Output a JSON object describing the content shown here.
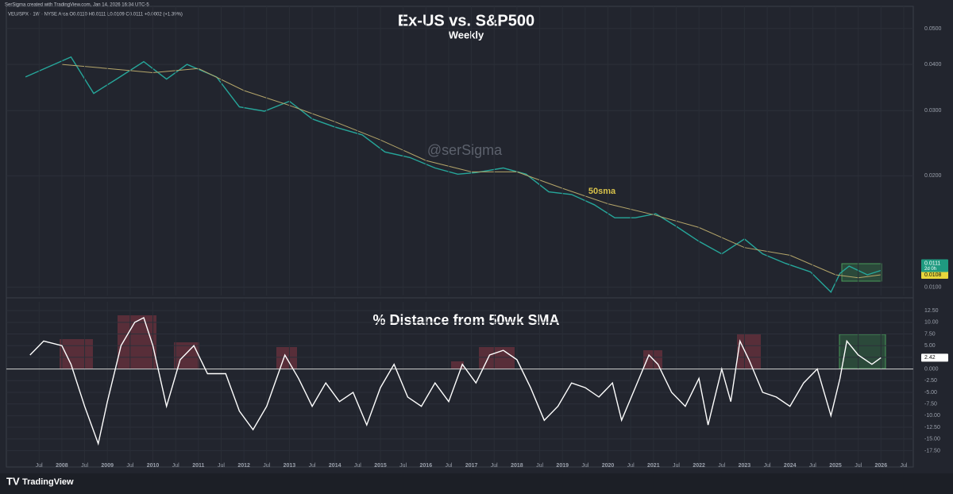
{
  "header": "SerSigma created with TradingView.com, Jan 14, 2026 16:34 UTC-5",
  "legend": "VEU/SPX · 1W · NYSE Arca  O0.0110 H0.0111 L0.0109 C0.0111 +0.0002 (+1.39%)",
  "watermark": "@serSigma",
  "brand": "TradingView",
  "chart_data": [
    {
      "type": "line",
      "title": "Ex-US vs. S&P500",
      "subtitle": "Weekly",
      "log_scale": true,
      "grid": true,
      "xlim": [
        2006.78,
        2026.71
      ],
      "ylim": [
        0.0095,
        0.0574
      ],
      "yticks": [
        {
          "value": 0.05,
          "label": "0.0500"
        },
        {
          "value": 0.04,
          "label": "0.0400"
        },
        {
          "value": 0.03,
          "label": "0.0300"
        },
        {
          "value": 0.02,
          "label": "0.0200"
        },
        {
          "value": 0.01,
          "label": "0.0100"
        }
      ],
      "annotation": "50sma",
      "last_price": {
        "value": 0.0111,
        "label": "0.0111",
        "countdown": "2d 0h"
      },
      "sma_last": {
        "value": 0.0108,
        "label": "0.0108"
      },
      "series": [
        {
          "name": "VEU/SPX",
          "color": "#26a69a",
          "x": [
            2007.2,
            2008.2,
            2008.7,
            2009.2,
            2009.8,
            2010.3,
            2010.75,
            2011.4,
            2011.9,
            2012.45,
            2013.0,
            2013.5,
            2014.0,
            2014.6,
            2015.1,
            2015.65,
            2016.2,
            2016.7,
            2017.1,
            2017.7,
            2018.2,
            2018.7,
            2019.2,
            2019.7,
            2020.15,
            2020.6,
            2021.05,
            2021.5,
            2022.0,
            2022.5,
            2023.0,
            2023.4,
            2023.9,
            2024.45,
            2024.9,
            2025.1,
            2025.3,
            2025.7,
            2026.0
          ],
          "values": [
            0.037,
            0.0419,
            0.0334,
            0.0365,
            0.0407,
            0.0365,
            0.04,
            0.037,
            0.0307,
            0.0299,
            0.0318,
            0.0285,
            0.0271,
            0.0258,
            0.0232,
            0.0224,
            0.021,
            0.0202,
            0.0204,
            0.021,
            0.0202,
            0.0181,
            0.0178,
            0.0167,
            0.0154,
            0.0154,
            0.0158,
            0.0146,
            0.0133,
            0.0123,
            0.0135,
            0.0123,
            0.0116,
            0.011,
            0.0097,
            0.0109,
            0.0114,
            0.0108,
            0.0111
          ]
        },
        {
          "name": "50sma",
          "color": "#b5a66a",
          "x": [
            2008.0,
            2009.0,
            2010.0,
            2011.0,
            2012.0,
            2013.0,
            2014.0,
            2015.0,
            2016.0,
            2017.0,
            2018.0,
            2019.0,
            2020.0,
            2021.0,
            2022.0,
            2023.0,
            2024.0,
            2025.0,
            2025.5,
            2026.0
          ],
          "values": [
            0.04,
            0.039,
            0.038,
            0.039,
            0.034,
            0.031,
            0.028,
            0.025,
            0.022,
            0.0205,
            0.0205,
            0.0185,
            0.0168,
            0.0157,
            0.0145,
            0.0128,
            0.0122,
            0.0108,
            0.0106,
            0.0108
          ]
        }
      ]
    },
    {
      "type": "line",
      "title": "% Distance from 50wk SMA",
      "grid": true,
      "reference_line": 0,
      "xlim": [
        2006.78,
        2026.71
      ],
      "ylim": [
        -21,
        14.4
      ],
      "xticks": [
        {
          "value": 2007.5,
          "label": "Jul"
        },
        2008,
        {
          "value": 2008.5,
          "label": "Jul"
        },
        2009,
        {
          "value": 2009.5,
          "label": "Jul"
        },
        2010,
        {
          "value": 2010.5,
          "label": "Jul"
        },
        2011,
        {
          "value": 2011.5,
          "label": "Jul"
        },
        2012,
        {
          "value": 2012.5,
          "label": "Jul"
        },
        2013,
        {
          "value": 2013.5,
          "label": "Jul"
        },
        2014,
        {
          "value": 2014.5,
          "label": "Jul"
        },
        2015,
        {
          "value": 2015.5,
          "label": "Jul"
        },
        2016,
        {
          "value": 2016.5,
          "label": "Jul"
        },
        2017,
        {
          "value": 2017.5,
          "label": "Jul"
        },
        2018,
        {
          "value": 2018.5,
          "label": "Jul"
        },
        2019,
        {
          "value": 2019.5,
          "label": "Jul"
        },
        2020,
        {
          "value": 2020.5,
          "label": "Jul"
        },
        2021,
        {
          "value": 2021.5,
          "label": "Jul"
        },
        2022,
        {
          "value": 2022.5,
          "label": "Jul"
        },
        2023,
        {
          "value": 2023.5,
          "label": "Jul"
        },
        2024,
        {
          "value": 2024.5,
          "label": "Jul"
        },
        2025,
        {
          "value": 2025.5,
          "label": "Jul"
        },
        2026,
        {
          "value": 2026.5,
          "label": "Jul"
        }
      ],
      "yticks": [
        {
          "value": 12.5,
          "label": "12.50"
        },
        {
          "value": 10,
          "label": "10.00"
        },
        {
          "value": 7.5,
          "label": "7.50"
        },
        {
          "value": 5,
          "label": "5.00"
        },
        {
          "value": 2.5,
          "label": "2.50"
        },
        {
          "value": 0,
          "label": "0.000"
        },
        {
          "value": -2.5,
          "label": "-2.50"
        },
        {
          "value": -5,
          "label": "-5.00"
        },
        {
          "value": -7.5,
          "label": "-7.50"
        },
        {
          "value": -10,
          "label": "-10.00"
        },
        {
          "value": -12.5,
          "label": "-12.50"
        },
        {
          "value": -15,
          "label": "-15.00"
        },
        {
          "value": -17.5,
          "label": "-17.50"
        }
      ],
      "last_value": {
        "value": 2.42,
        "label": "2.42"
      },
      "series": [
        {
          "name": "% Distance from 50wk SMA",
          "color": "#ffffff",
          "x": [
            2007.3,
            2007.6,
            2008.0,
            2008.2,
            2008.5,
            2008.8,
            2009.0,
            2009.3,
            2009.6,
            2009.8,
            2010.0,
            2010.3,
            2010.6,
            2010.9,
            2011.2,
            2011.6,
            2011.9,
            2012.2,
            2012.5,
            2012.9,
            2013.2,
            2013.5,
            2013.8,
            2014.1,
            2014.4,
            2014.7,
            2015.0,
            2015.3,
            2015.6,
            2015.9,
            2016.2,
            2016.5,
            2016.8,
            2017.1,
            2017.4,
            2017.7,
            2018.0,
            2018.3,
            2018.6,
            2018.9,
            2019.2,
            2019.5,
            2019.8,
            2020.1,
            2020.3,
            2020.6,
            2020.9,
            2021.1,
            2021.4,
            2021.7,
            2022.0,
            2022.2,
            2022.5,
            2022.7,
            2022.9,
            2023.1,
            2023.4,
            2023.7,
            2024.0,
            2024.3,
            2024.6,
            2024.9,
            2025.1,
            2025.25,
            2025.5,
            2025.8,
            2026.0
          ],
          "values": [
            3,
            6,
            5,
            1,
            -8,
            -16,
            -7,
            5,
            10,
            11,
            5,
            -8,
            2,
            5,
            -1,
            -1,
            -9,
            -13,
            -8,
            3,
            -2,
            -8,
            -3,
            -7,
            -5,
            -12,
            -4,
            1,
            -6,
            -8,
            -3,
            -7,
            1,
            -3,
            3,
            4,
            2,
            -4,
            -11,
            -8,
            -3,
            -4,
            -6,
            -3,
            -11,
            -4,
            3,
            1,
            -5,
            -8,
            -2,
            -12,
            0,
            -7,
            6,
            2,
            -5,
            -6,
            -8,
            -3,
            0,
            -10,
            -2,
            6,
            3,
            1,
            2.42
          ]
        }
      ]
    }
  ]
}
